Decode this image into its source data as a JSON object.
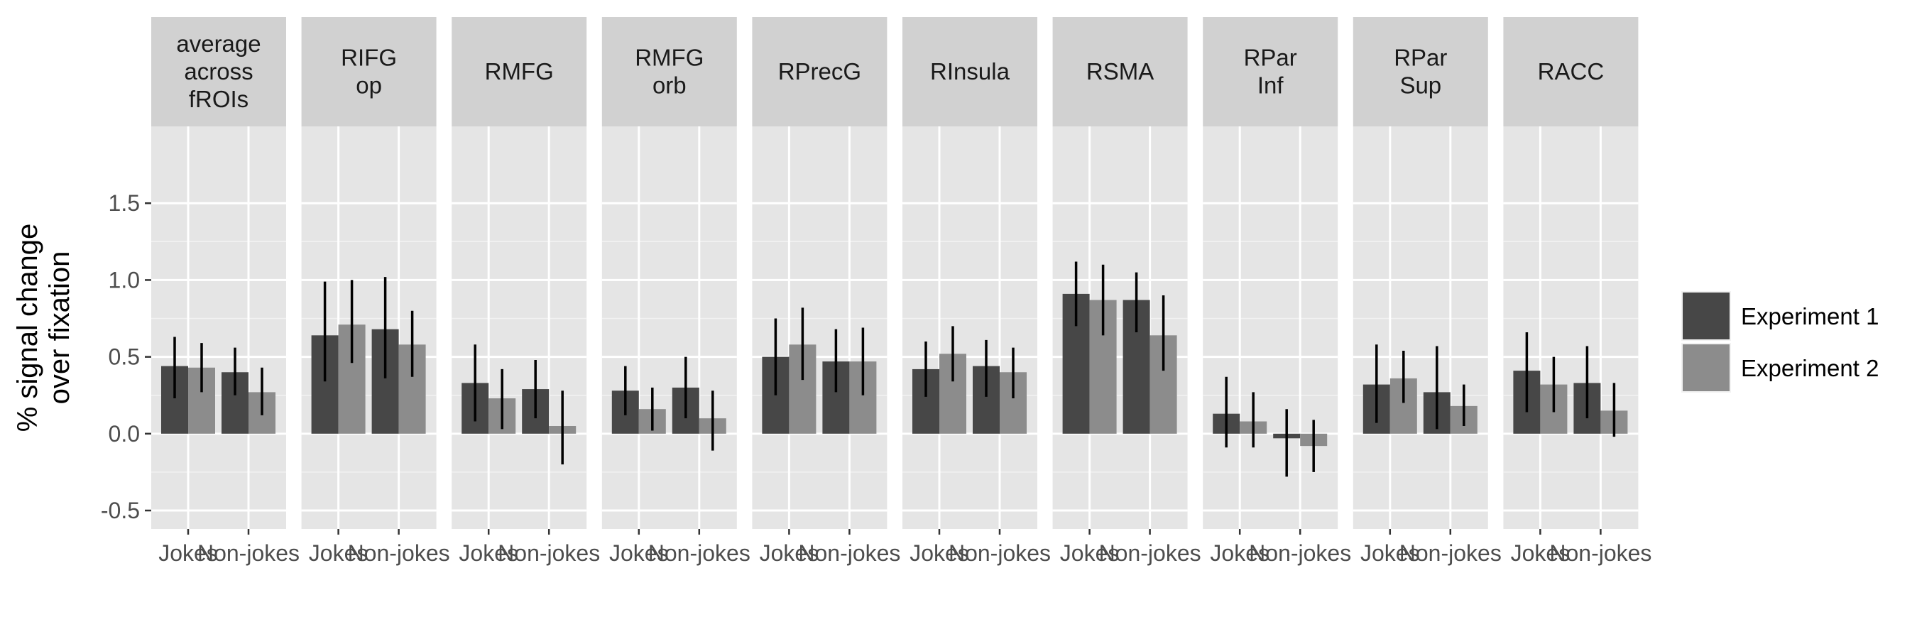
{
  "chart_data": {
    "type": "bar",
    "ylabel": [
      "% signal change",
      "over fixation"
    ],
    "ylim": [
      -0.62,
      2.0
    ],
    "yticks": [
      -0.5,
      0.0,
      0.5,
      1.0,
      1.5
    ],
    "ytick_labels": [
      "-0.5",
      "0.0",
      "0.5",
      "1.0",
      "1.5"
    ],
    "categories": [
      "Jokes",
      "Non-jokes"
    ],
    "series": [
      {
        "name": "Experiment 1",
        "color": "#474747"
      },
      {
        "name": "Experiment 2",
        "color": "#8c8c8c"
      }
    ],
    "legend_position": "right",
    "grid": true,
    "panel_background": "#e5e5e5",
    "strip_background": "#d1d1d1",
    "facets": [
      {
        "title": [
          "average",
          "across",
          "fROIs"
        ],
        "values": [
          [
            0.44,
            0.43
          ],
          [
            0.4,
            0.27
          ]
        ],
        "errors": [
          [
            [
              0.23,
              0.63
            ],
            [
              0.27,
              0.59
            ]
          ],
          [
            [
              0.25,
              0.56
            ],
            [
              0.12,
              0.43
            ]
          ]
        ]
      },
      {
        "title": [
          "RIFG",
          "op"
        ],
        "values": [
          [
            0.64,
            0.71
          ],
          [
            0.68,
            0.58
          ]
        ],
        "errors": [
          [
            [
              0.34,
              0.99
            ],
            [
              0.46,
              1.0
            ]
          ],
          [
            [
              0.36,
              1.02
            ],
            [
              0.37,
              0.8
            ]
          ]
        ]
      },
      {
        "title": [
          "RMFG"
        ],
        "values": [
          [
            0.33,
            0.23
          ],
          [
            0.29,
            0.05
          ]
        ],
        "errors": [
          [
            [
              0.08,
              0.58
            ],
            [
              0.03,
              0.42
            ]
          ],
          [
            [
              0.1,
              0.48
            ],
            [
              -0.2,
              0.28
            ]
          ]
        ]
      },
      {
        "title": [
          "RMFG",
          "orb"
        ],
        "values": [
          [
            0.28,
            0.16
          ],
          [
            0.3,
            0.1
          ]
        ],
        "errors": [
          [
            [
              0.12,
              0.44
            ],
            [
              0.02,
              0.3
            ]
          ],
          [
            [
              0.1,
              0.5
            ],
            [
              -0.11,
              0.28
            ]
          ]
        ]
      },
      {
        "title": [
          "RPrecG"
        ],
        "values": [
          [
            0.5,
            0.58
          ],
          [
            0.47,
            0.47
          ]
        ],
        "errors": [
          [
            [
              0.25,
              0.75
            ],
            [
              0.35,
              0.82
            ]
          ],
          [
            [
              0.27,
              0.68
            ],
            [
              0.25,
              0.69
            ]
          ]
        ]
      },
      {
        "title": [
          "RInsula"
        ],
        "values": [
          [
            0.42,
            0.52
          ],
          [
            0.44,
            0.4
          ]
        ],
        "errors": [
          [
            [
              0.24,
              0.6
            ],
            [
              0.34,
              0.7
            ]
          ],
          [
            [
              0.24,
              0.61
            ],
            [
              0.23,
              0.56
            ]
          ]
        ]
      },
      {
        "title": [
          "RSMA"
        ],
        "values": [
          [
            0.91,
            0.87
          ],
          [
            0.87,
            0.64
          ]
        ],
        "errors": [
          [
            [
              0.7,
              1.12
            ],
            [
              0.64,
              1.1
            ]
          ],
          [
            [
              0.66,
              1.05
            ],
            [
              0.41,
              0.9
            ]
          ]
        ]
      },
      {
        "title": [
          "RPar",
          "Inf"
        ],
        "values": [
          [
            0.13,
            0.08
          ],
          [
            -0.03,
            -0.08
          ]
        ],
        "errors": [
          [
            [
              -0.09,
              0.37
            ],
            [
              -0.09,
              0.27
            ]
          ],
          [
            [
              -0.28,
              0.16
            ],
            [
              -0.25,
              0.09
            ]
          ]
        ]
      },
      {
        "title": [
          "RPar",
          "Sup"
        ],
        "values": [
          [
            0.32,
            0.36
          ],
          [
            0.27,
            0.18
          ]
        ],
        "errors": [
          [
            [
              0.07,
              0.58
            ],
            [
              0.2,
              0.54
            ]
          ],
          [
            [
              0.03,
              0.57
            ],
            [
              0.05,
              0.32
            ]
          ]
        ]
      },
      {
        "title": [
          "RACC"
        ],
        "values": [
          [
            0.41,
            0.32
          ],
          [
            0.33,
            0.15
          ]
        ],
        "errors": [
          [
            [
              0.14,
              0.66
            ],
            [
              0.14,
              0.5
            ]
          ],
          [
            [
              0.1,
              0.57
            ],
            [
              -0.02,
              0.33
            ]
          ]
        ]
      }
    ]
  }
}
